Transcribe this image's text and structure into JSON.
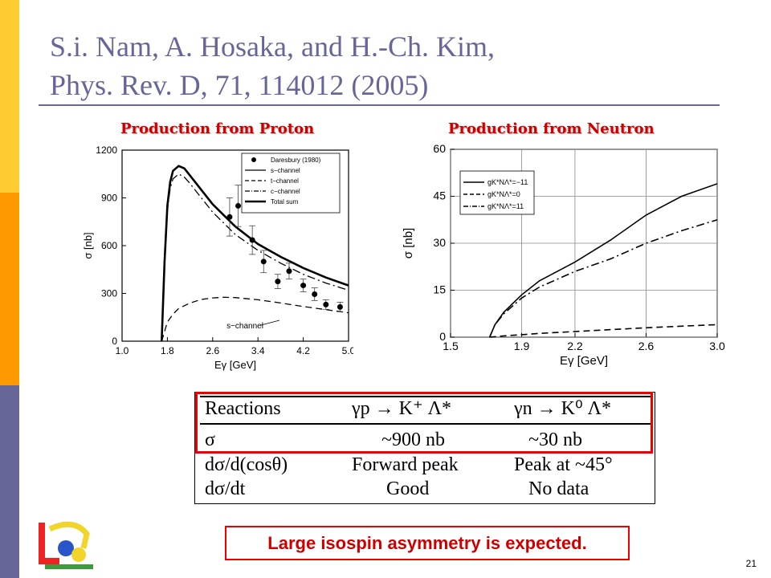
{
  "slide": {
    "title_line1": "S.i. Nam, A. Hosaka, and H.-Ch. Kim,",
    "title_line2": "Phys. Rev. D, 71, 114012 (2005)",
    "left_plot_title": "Production from Proton",
    "right_plot_title": "Production from Neutron",
    "conclusion": "Large isospin asymmetry is expected.",
    "page_number": "21",
    "colors": {
      "accent": "#666699",
      "title_red": "#cc0000",
      "highlight_border": "#ee0000",
      "sidebar": [
        "#ffcc33",
        "#ff9900",
        "#666699"
      ]
    }
  },
  "table": {
    "header": [
      "Reactions",
      "γp → K⁺ Λ*",
      "γn → K⁰ Λ*"
    ],
    "rows": [
      [
        "σ",
        "~900 nb",
        "~30 nb"
      ],
      [
        "dσ/d(cosθ)",
        "Forward peak",
        "Peak at ~45°"
      ],
      [
        "dσ/dt",
        "Good",
        "No data"
      ]
    ]
  },
  "chart_data": [
    {
      "type": "line",
      "xlabel": "Eγ [GeV]",
      "ylabel": "σ [nb]",
      "xlim": [
        1.0,
        5.0
      ],
      "ylim": [
        0,
        1200
      ],
      "xticks": [
        "1.0",
        "1.8",
        "2.6",
        "3.4",
        "4.2",
        "5.0"
      ],
      "yticks": [
        "0",
        "300",
        "600",
        "900",
        "1200"
      ],
      "legend_position": "top-right",
      "legend": [
        "Daresbury (1980)",
        "s−channel",
        "t−channel",
        "c−channel",
        "Total sum"
      ],
      "annotation": "s−channel",
      "series": [
        {
          "name": "Total sum",
          "style": "thick",
          "x": [
            1.7,
            1.75,
            1.8,
            1.85,
            1.9,
            2.0,
            2.1,
            2.2,
            2.4,
            2.6,
            2.8,
            3.0,
            3.4,
            3.8,
            4.2,
            4.6,
            5.0
          ],
          "y": [
            0,
            500,
            850,
            1000,
            1070,
            1100,
            1085,
            1040,
            950,
            860,
            790,
            720,
            610,
            530,
            460,
            400,
            350
          ]
        },
        {
          "name": "c−channel",
          "style": "dashdot",
          "x": [
            1.7,
            1.75,
            1.8,
            1.85,
            1.9,
            2.0,
            2.1,
            2.2,
            2.4,
            2.6,
            2.8,
            3.0,
            3.4,
            3.8,
            4.2,
            4.6,
            5.0
          ],
          "y": [
            0,
            480,
            820,
            960,
            1020,
            1050,
            1030,
            990,
            900,
            810,
            740,
            670,
            570,
            490,
            420,
            365,
            320
          ]
        },
        {
          "name": "s−channel",
          "style": "dashed",
          "x": [
            1.7,
            1.8,
            1.9,
            2.0,
            2.2,
            2.4,
            2.6,
            2.8,
            3.0,
            3.4,
            3.8,
            4.2,
            4.6,
            5.0
          ],
          "y": [
            0,
            120,
            170,
            205,
            240,
            262,
            272,
            276,
            274,
            260,
            240,
            218,
            198,
            178
          ]
        },
        {
          "name": "Daresbury (1980)",
          "style": "points",
          "x": [
            2.9,
            3.05,
            3.3,
            3.5,
            3.75,
            3.95,
            4.2,
            4.4,
            4.6,
            4.85
          ],
          "y": [
            780,
            850,
            635,
            500,
            375,
            440,
            350,
            295,
            230,
            215
          ],
          "err": [
            120,
            130,
            90,
            70,
            45,
            50,
            40,
            40,
            30,
            30
          ]
        }
      ]
    },
    {
      "type": "line",
      "xlabel": "Eγ [GeV]",
      "ylabel": "σ [nb]",
      "xlim": [
        1.5,
        3.0
      ],
      "ylim": [
        0,
        60
      ],
      "xticks": [
        "1.5",
        "1.9",
        "2.2",
        "2.6",
        "3.0"
      ],
      "yticks": [
        "0",
        "15",
        "30",
        "45",
        "60"
      ],
      "legend_position": "top-left",
      "legend": [
        "gK*NΛ*=−11",
        "gK*NΛ*=0",
        "gK*NΛ*=11"
      ],
      "series": [
        {
          "name": "gK*NΛ*=−11",
          "style": "solid",
          "x": [
            1.72,
            1.75,
            1.8,
            1.9,
            2.0,
            2.2,
            2.4,
            2.6,
            2.8,
            3.0
          ],
          "y": [
            0,
            4,
            8,
            13.5,
            18,
            24,
            31,
            39,
            45,
            49
          ]
        },
        {
          "name": "gK*NΛ*=11",
          "style": "dashdot",
          "x": [
            1.72,
            1.75,
            1.8,
            1.9,
            2.0,
            2.2,
            2.4,
            2.6,
            2.8,
            3.0
          ],
          "y": [
            0,
            4,
            7.5,
            12.5,
            16,
            21,
            25,
            30,
            34,
            37.5
          ]
        },
        {
          "name": "gK*NΛ*=0",
          "style": "dashed",
          "x": [
            1.72,
            1.8,
            1.9,
            2.0,
            2.2,
            2.4,
            2.6,
            2.8,
            3.0
          ],
          "y": [
            0,
            0.4,
            0.8,
            1.2,
            1.8,
            2.4,
            3.0,
            3.5,
            4.0
          ]
        }
      ]
    }
  ]
}
